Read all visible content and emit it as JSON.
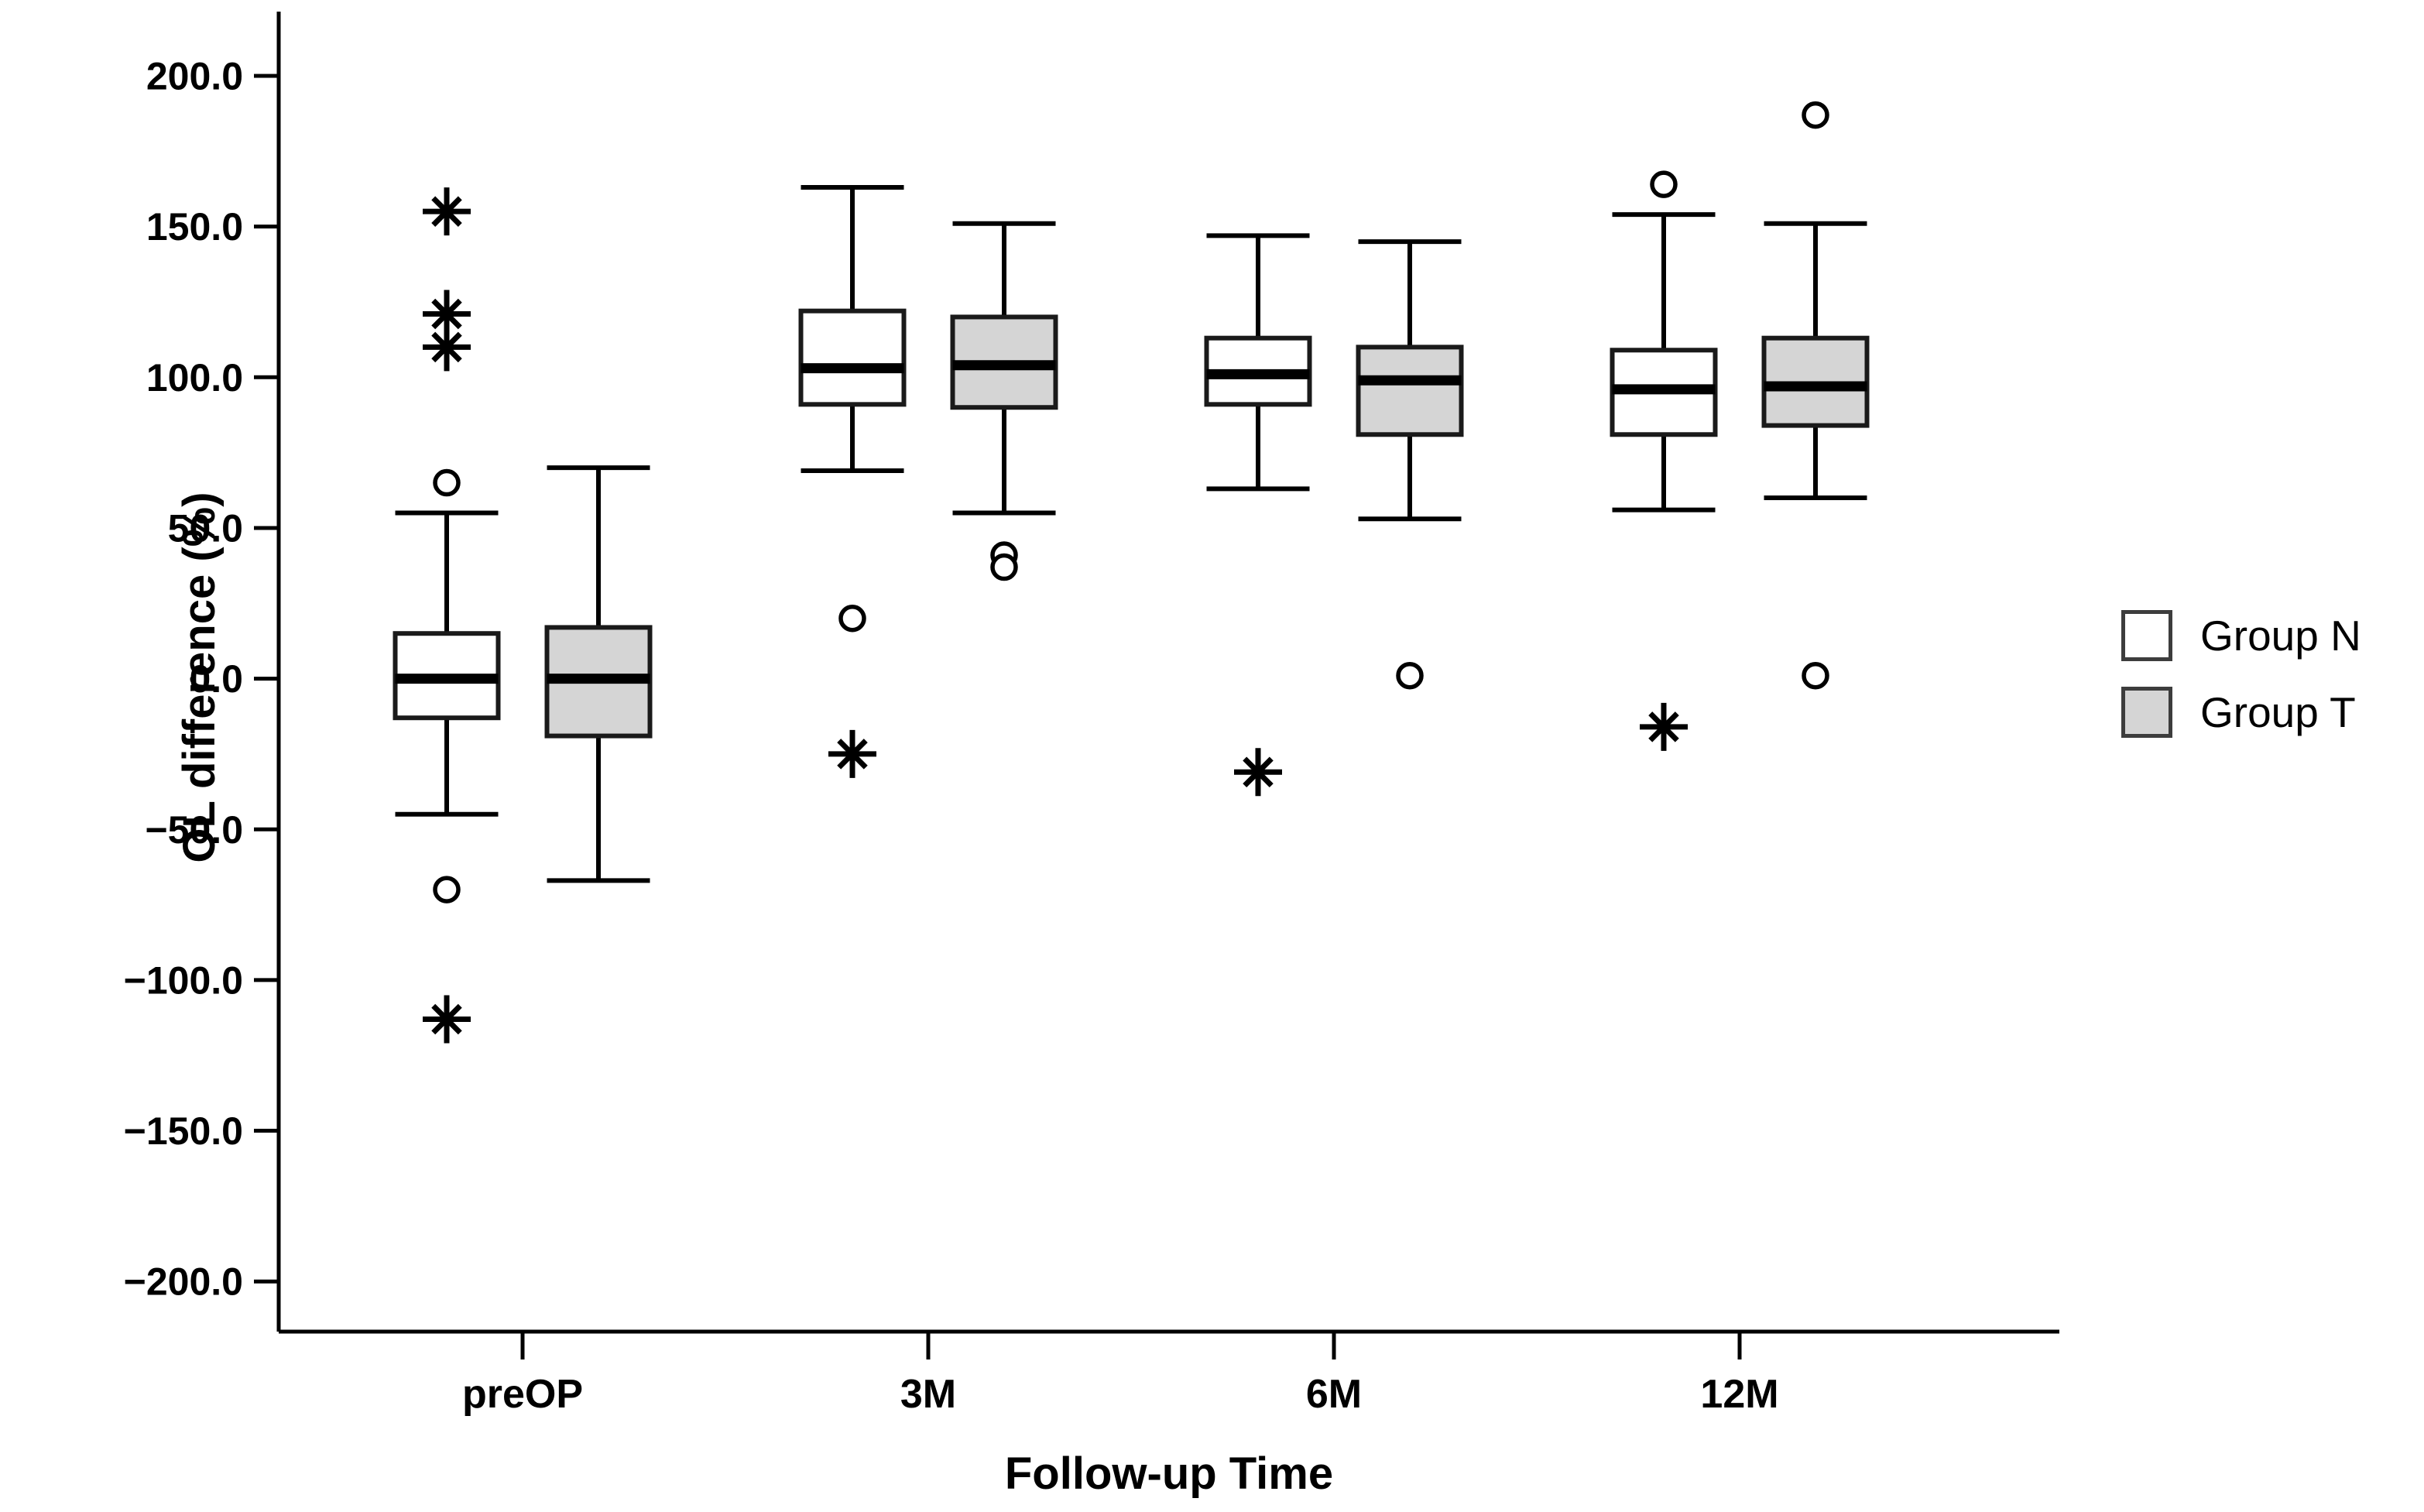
{
  "chart_data": {
    "type": "boxplot",
    "title": "",
    "xlabel": "Follow-up Time",
    "ylabel": "OL difference (%)",
    "categories": [
      "preOP",
      "3M",
      "6M",
      "12M"
    ],
    "y_axis": {
      "tick_values": [
        200,
        150,
        100,
        50,
        0,
        -50,
        -100,
        -150,
        -200
      ],
      "tick_labels": [
        "200.0",
        "150.0",
        "100.0",
        "50.0",
        "0.0",
        "−50.0",
        "−100.0",
        "−150.0",
        "−200.0"
      ],
      "ylim": [
        -220,
        222
      ],
      "grid": false
    },
    "legend_position": "right",
    "series": [
      {
        "name": "Group N",
        "fill": "#ffffff",
        "boxes": [
          {
            "category": "preOP",
            "whisker_low": -45,
            "q1": -13,
            "median": 0,
            "q3": 15,
            "whisker_high": 55,
            "outliers_circle": [
              65,
              -70
            ],
            "outliers_asterisk": [
              155,
              121,
              110,
              -113
            ]
          },
          {
            "category": "3M",
            "whisker_low": 69,
            "q1": 91,
            "median": 103,
            "q3": 122,
            "whisker_high": 163,
            "outliers_circle": [
              20
            ],
            "outliers_asterisk": [
              -25
            ]
          },
          {
            "category": "6M",
            "whisker_low": 63,
            "q1": 91,
            "median": 101,
            "q3": 113,
            "whisker_high": 147,
            "outliers_circle": [],
            "outliers_asterisk": [
              -31
            ]
          },
          {
            "category": "12M",
            "whisker_low": 56,
            "q1": 81,
            "median": 96,
            "q3": 109,
            "whisker_high": 154,
            "outliers_circle": [
              164
            ],
            "outliers_asterisk": [
              -16
            ]
          }
        ]
      },
      {
        "name": "Group T",
        "fill": "#d5d5d5",
        "boxes": [
          {
            "category": "preOP",
            "whisker_low": -67,
            "q1": -19,
            "median": 0,
            "q3": 17,
            "whisker_high": 70,
            "outliers_circle": [],
            "outliers_asterisk": []
          },
          {
            "category": "3M",
            "whisker_low": 55,
            "q1": 90,
            "median": 104,
            "q3": 120,
            "whisker_high": 151,
            "outliers_circle": [
              41,
              37
            ],
            "outliers_asterisk": []
          },
          {
            "category": "6M",
            "whisker_low": 53,
            "q1": 81,
            "median": 99,
            "q3": 110,
            "whisker_high": 145,
            "outliers_circle": [
              1
            ],
            "outliers_asterisk": []
          },
          {
            "category": "12M",
            "whisker_low": 60,
            "q1": 84,
            "median": 97,
            "q3": 113,
            "whisker_high": 151,
            "outliers_circle": [
              187,
              1
            ],
            "outliers_asterisk": []
          }
        ]
      }
    ],
    "legend": [
      {
        "label": "Group N",
        "fill": "#ffffff"
      },
      {
        "label": "Group T",
        "fill": "#d5d5d5"
      }
    ],
    "colors": {
      "line": "#000000",
      "box_border": "#1a1a1a",
      "gray_fill": "#d5d5d5",
      "legend_swatch_border": "#3d3d3d"
    }
  }
}
